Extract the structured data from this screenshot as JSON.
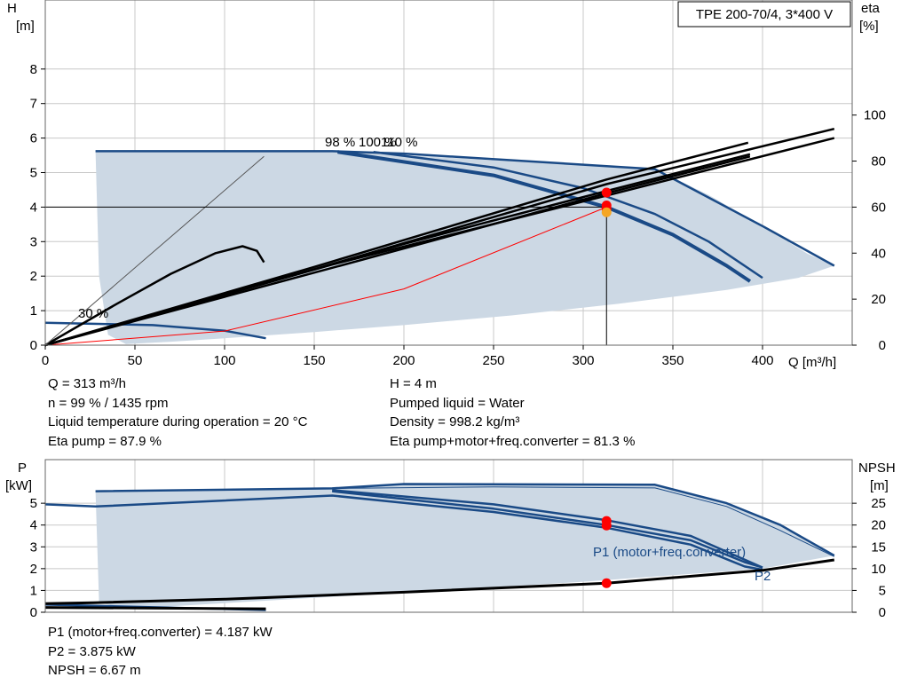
{
  "title": "TPE 200-70/4, 3*400 V",
  "colors": {
    "envelope": "#ccd8e4",
    "envelope_light": "#e8f0f8",
    "curve_blue": "#1a4a86",
    "curve_black": "#000000",
    "point_red": "#ff0000",
    "system_curve": "#ff0000",
    "grid": "#c8c8c8"
  },
  "chart_data": [
    {
      "type": "line",
      "name": "head",
      "x_axis": {
        "label": "Q [m³/h]",
        "range": [
          0,
          450
        ],
        "ticks": [
          0,
          50,
          100,
          150,
          200,
          250,
          300,
          350,
          400
        ]
      },
      "y_axis_left": {
        "label_top": "H",
        "label_unit": "[m]",
        "range": [
          0,
          10
        ],
        "ticks": [
          0,
          1,
          2,
          3,
          4,
          5,
          6,
          7,
          8
        ]
      },
      "y_axis_right": {
        "label_top": "eta",
        "label_unit": "[%]",
        "range": [
          0,
          150
        ],
        "ticks": [
          0,
          20,
          40,
          60,
          80,
          100
        ]
      },
      "grid": true,
      "speed_labels": [
        "98 %",
        "100 %",
        "110 %",
        "30 %"
      ],
      "operating_point": {
        "Q": 313,
        "H": 4
      },
      "series": [
        {
          "kind": "envelope",
          "points": [
            [
              0,
              5.62
            ],
            [
              28,
              5.62
            ],
            [
              160,
              5.62
            ],
            [
              340,
              5.1
            ],
            [
              370,
              4.35
            ],
            [
              400,
              3.45
            ],
            [
              425,
              2.65
            ],
            [
              440,
              2.3
            ],
            [
              420,
              1.95
            ],
            [
              380,
              1.6
            ],
            [
              320,
              1.2
            ],
            [
              260,
              0.86
            ],
            [
              200,
              0.58
            ],
            [
              150,
              0.38
            ],
            [
              100,
              0.2
            ],
            [
              70,
              0.1
            ],
            [
              45,
              0.03
            ],
            [
              35,
              0.3
            ],
            [
              30,
              2.0
            ],
            [
              28,
              5.62
            ]
          ]
        },
        {
          "kind": "head",
          "label": "110 %",
          "points": [
            [
              28,
              5.62
            ],
            [
              160,
              5.62
            ],
            [
              200,
              5.55
            ],
            [
              340,
              5.1
            ],
            [
              400,
              3.45
            ],
            [
              440,
              2.3
            ]
          ]
        },
        {
          "kind": "head",
          "label": "100 %",
          "points": [
            [
              183,
              5.6
            ],
            [
              250,
              5.15
            ],
            [
              300,
              4.55
            ],
            [
              340,
              3.8
            ],
            [
              370,
              3.0
            ],
            [
              400,
              1.95
            ]
          ]
        },
        {
          "kind": "head",
          "label": "98 %",
          "points": [
            [
              163,
              5.6
            ],
            [
              250,
              4.92
            ],
            [
              313,
              4.0
            ],
            [
              350,
              3.2
            ],
            [
              380,
              2.3
            ],
            [
              393,
              1.85
            ]
          ]
        },
        {
          "kind": "head",
          "label": "30 %",
          "points": [
            [
              0,
              0.65
            ],
            [
              60,
              0.58
            ],
            [
              100,
              0.42
            ],
            [
              123,
              0.2
            ]
          ]
        },
        {
          "kind": "system",
          "points": [
            [
              0,
              0
            ],
            [
              100,
              0.41
            ],
            [
              200,
              1.63
            ],
            [
              313,
              4.0
            ]
          ]
        },
        {
          "kind": "eta",
          "points": [
            [
              0,
              0
            ],
            [
              100,
              22
            ],
            [
              200,
              44
            ],
            [
              313,
              67
            ],
            [
              393,
              83
            ]
          ]
        },
        {
          "kind": "eta",
          "points": [
            [
              0,
              0
            ],
            [
              100,
              21
            ],
            [
              200,
              42
            ],
            [
              313,
              66
            ],
            [
              393,
              82
            ]
          ]
        },
        {
          "kind": "eta",
          "points": [
            [
              0,
              0
            ],
            [
              150,
              34
            ],
            [
              313,
              72
            ],
            [
              392,
              88
            ]
          ]
        },
        {
          "kind": "eta",
          "points": [
            [
              0,
              0
            ],
            [
              150,
              33
            ],
            [
              313,
              70
            ],
            [
              440,
              94
            ]
          ]
        },
        {
          "kind": "eta",
          "points": [
            [
              0,
              0
            ],
            [
              160,
              35
            ],
            [
              313,
              65
            ],
            [
              440,
              90
            ]
          ]
        },
        {
          "kind": "eta_low",
          "points": [
            [
              0,
              0
            ],
            [
              40,
              18
            ],
            [
              70,
              31
            ],
            [
              95,
              40
            ],
            [
              110,
              43
            ],
            [
              118,
              41
            ],
            [
              122,
              36
            ]
          ]
        },
        {
          "kind": "line_thin",
          "points": [
            [
              0,
              0
            ],
            [
              122,
              82
            ]
          ]
        }
      ],
      "points": [
        {
          "Q": 313,
          "H": 4.42,
          "color": "red"
        },
        {
          "Q": 313,
          "H": 4.05,
          "color": "red"
        },
        {
          "Q": 313,
          "H": 3.95,
          "color": "red"
        },
        {
          "Q": 313,
          "H": 3.85,
          "color": "orange"
        }
      ]
    },
    {
      "type": "line",
      "name": "power_npsh",
      "x_axis": {
        "range": [
          0,
          450
        ]
      },
      "y_axis_left": {
        "label_top": "P",
        "label_unit": "[kW]",
        "range": [
          0,
          7
        ],
        "ticks": [
          0,
          1,
          2,
          3,
          4,
          5
        ]
      },
      "y_axis_right": {
        "label_top": "NPSH",
        "label_unit": "[m]",
        "range": [
          0,
          35
        ],
        "ticks": [
          0,
          5,
          10,
          15,
          20,
          25
        ]
      },
      "grid": true,
      "series_labels": [
        "P1 (motor+freq.converter)",
        "P2"
      ],
      "series": [
        {
          "kind": "envelope",
          "points": [
            [
              0,
              5.55
            ],
            [
              28,
              5.55
            ],
            [
              160,
              5.68
            ],
            [
              200,
              5.88
            ],
            [
              340,
              5.85
            ],
            [
              380,
              5.0
            ],
            [
              410,
              4.0
            ],
            [
              440,
              2.6
            ],
            [
              400,
              2.0
            ],
            [
              300,
              1.4
            ],
            [
              200,
              0.9
            ],
            [
              100,
              0.42
            ],
            [
              45,
              0.15
            ],
            [
              30,
              0.45
            ],
            [
              28,
              5.55
            ]
          ]
        },
        {
          "kind": "p1",
          "points": [
            [
              28,
              5.55
            ],
            [
              160,
              5.68
            ],
            [
              200,
              5.88
            ],
            [
              340,
              5.85
            ],
            [
              380,
              5.0
            ],
            [
              410,
              4.0
            ],
            [
              440,
              2.6
            ]
          ]
        },
        {
          "kind": "p1_thin",
          "points": [
            [
              160,
              5.68
            ],
            [
              250,
              5.75
            ],
            [
              340,
              5.7
            ],
            [
              380,
              4.85
            ],
            [
              410,
              3.75
            ],
            [
              440,
              2.55
            ]
          ]
        },
        {
          "kind": "p1",
          "points": [
            [
              160,
              5.6
            ],
            [
              250,
              4.95
            ],
            [
              313,
              4.22
            ],
            [
              360,
              3.5
            ],
            [
              400,
              2.05
            ]
          ]
        },
        {
          "kind": "p1",
          "points": [
            [
              160,
              5.55
            ],
            [
              250,
              4.75
            ],
            [
              313,
              4.0
            ],
            [
              360,
              3.3
            ],
            [
              390,
              2.3
            ],
            [
              400,
              2.05
            ]
          ]
        },
        {
          "kind": "p2",
          "points": [
            [
              0,
              4.95
            ],
            [
              28,
              4.85
            ],
            [
              160,
              5.35
            ],
            [
              250,
              4.6
            ],
            [
              313,
              3.875
            ],
            [
              360,
              3.1
            ],
            [
              390,
              2.1
            ],
            [
              400,
              1.95
            ]
          ]
        },
        {
          "kind": "p1_low",
          "points": [
            [
              0,
              0.35
            ],
            [
              123,
              0.1
            ]
          ]
        },
        {
          "kind": "npsh",
          "points": [
            [
              0,
              2.0
            ],
            [
              27,
              2.2
            ],
            [
              100,
              3.0
            ],
            [
              200,
              4.6
            ],
            [
              313,
              6.67
            ],
            [
              400,
              9.6
            ],
            [
              440,
              12.0
            ]
          ]
        },
        {
          "kind": "npsh_low",
          "points": [
            [
              0,
              1.1
            ],
            [
              123,
              0.8
            ]
          ]
        }
      ],
      "points": [
        {
          "Q": 313,
          "P": 4.187,
          "color": "red"
        },
        {
          "Q": 313,
          "P": 3.98,
          "color": "red"
        },
        {
          "Q": 313,
          "NPSH": 6.67,
          "color": "red"
        }
      ]
    }
  ],
  "info_head": [
    "Q = 313 m³/h",
    "n = 99 % / 1435 rpm",
    "Liquid temperature during operation = 20 °C",
    "Eta pump = 87.9 %"
  ],
  "info_head_right": [
    "H = 4 m",
    "Pumped liquid = Water",
    "Density = 998.2 kg/m³",
    "Eta pump+motor+freq.converter = 81.3 %"
  ],
  "info_power": [
    "P1 (motor+freq.converter) = 4.187 kW",
    "P2 = 3.875 kW",
    "NPSH = 6.67 m"
  ]
}
